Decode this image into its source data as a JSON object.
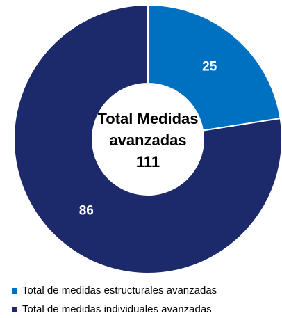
{
  "chart_data": {
    "type": "pie",
    "categories": [
      "Total de medidas estructurales avanzadas",
      "Total de medidas individuales avanzadas"
    ],
    "values": [
      25,
      86
    ],
    "colors": [
      "#0070c0",
      "#1c2a6b"
    ],
    "center_label": [
      "Total Medidas",
      "avanzadas"
    ],
    "total": 111,
    "legend": "bottom"
  }
}
